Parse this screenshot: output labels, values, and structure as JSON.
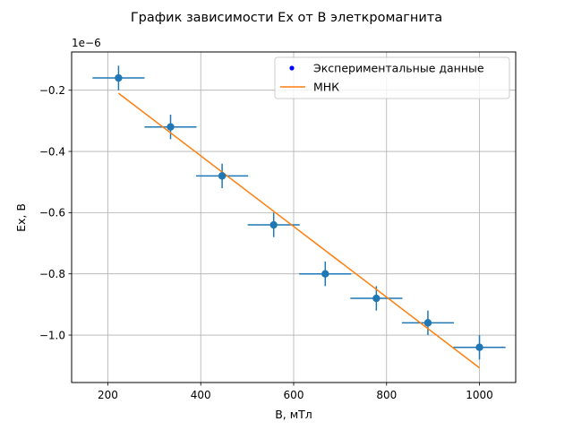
{
  "chart_data": {
    "type": "scatter",
    "title": "График зависимости Ex от B элеткромагнита",
    "xlabel": "B, мТл",
    "ylabel": "Ex, B",
    "y_offset_label": "1e−6",
    "y_scale": 1e-06,
    "xlim": [
      122,
      1078
    ],
    "ylim": [
      -1.155e-06,
      -7.5e-08
    ],
    "x_ticks": [
      200,
      400,
      600,
      800,
      1000
    ],
    "x_tick_labels": [
      "200",
      "400",
      "600",
      "800",
      "1000"
    ],
    "y_ticks": [
      -1e-06,
      -8e-07,
      -6e-07,
      -4e-07,
      -2e-07
    ],
    "y_tick_labels": [
      "−1.0",
      "−0.8",
      "−0.6",
      "−0.4",
      "−0.2"
    ],
    "grid": true,
    "legend_position": "top-right",
    "series": [
      {
        "name": "Экспериментальные данные",
        "kind": "errorbar",
        "color": "#1f77b4",
        "points": [
          {
            "x": 223,
            "y": -1.6e-07,
            "xerr": 56,
            "yerr": 4e-08
          },
          {
            "x": 335,
            "y": -3.2e-07,
            "xerr": 56,
            "yerr": 4e-08
          },
          {
            "x": 446,
            "y": -4.8e-07,
            "xerr": 56,
            "yerr": 4e-08
          },
          {
            "x": 557,
            "y": -6.4e-07,
            "xerr": 56,
            "yerr": 4e-08
          },
          {
            "x": 668,
            "y": -8e-07,
            "xerr": 56,
            "yerr": 4e-08
          },
          {
            "x": 778,
            "y": -8.8e-07,
            "xerr": 56,
            "yerr": 4e-08
          },
          {
            "x": 889,
            "y": -9.6e-07,
            "xerr": 56,
            "yerr": 4e-08
          },
          {
            "x": 1000,
            "y": -1.04e-06,
            "xerr": 56,
            "yerr": 4e-08
          }
        ]
      },
      {
        "name": "МНК",
        "kind": "line",
        "color": "#ff7f0e",
        "x": [
          223,
          1000
        ],
        "y": [
          -2.1e-07,
          -1.107e-06
        ]
      }
    ]
  }
}
